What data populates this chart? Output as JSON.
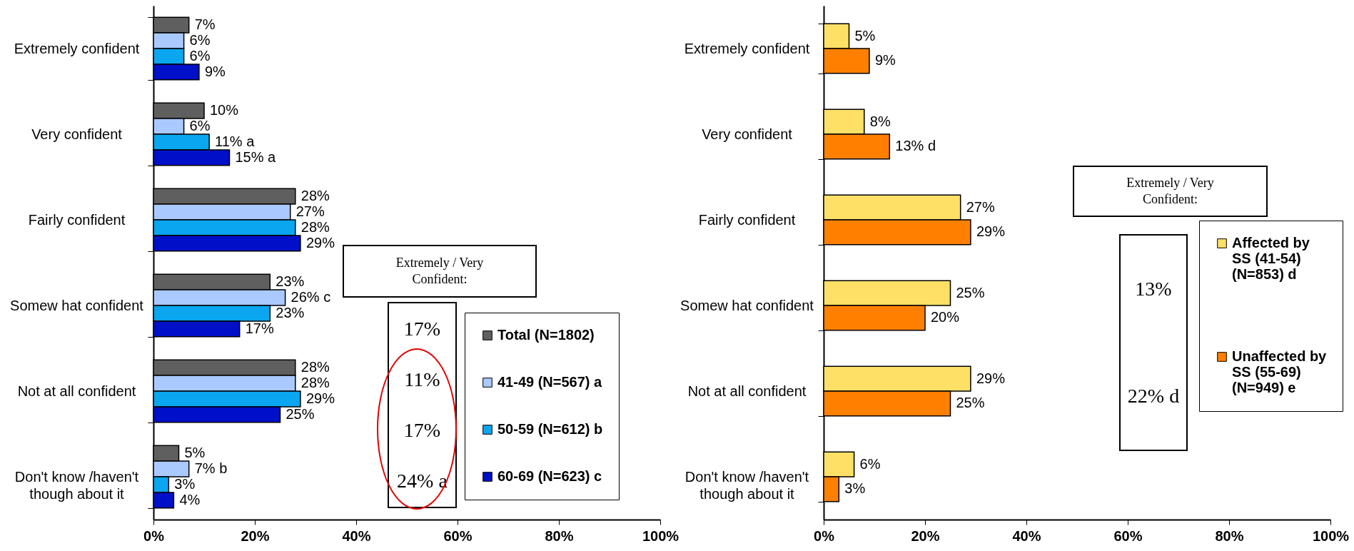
{
  "chart_data": [
    {
      "type": "bar",
      "orientation": "horizontal",
      "categories": [
        "Extremely confident",
        "Very confident",
        "Fairly confident",
        "Somew hat confident",
        "Not at all confident",
        "Don't know /haven't though about it"
      ],
      "series": [
        {
          "name": "Total (N=1802)",
          "color": "#5f5f5f",
          "values": [
            7,
            10,
            28,
            23,
            28,
            5
          ],
          "value_labels": [
            "7%",
            "10%",
            "28%",
            "23%",
            "28%",
            "5%"
          ]
        },
        {
          "name": "41-49 (N=567) a",
          "color": "#a9c9ff",
          "values": [
            6,
            6,
            27,
            26,
            28,
            7
          ],
          "value_labels": [
            "6%",
            "6%",
            "27%",
            "26% c",
            "28%",
            "7% b"
          ]
        },
        {
          "name": "50-59 (N=612) b",
          "color": "#0aa6f0",
          "values": [
            6,
            11,
            28,
            23,
            29,
            3
          ],
          "value_labels": [
            "6%",
            "11% a",
            "28%",
            "23%",
            "29%",
            "3%"
          ]
        },
        {
          "name": "60-69 (N=623) c",
          "color": "#0010c8",
          "values": [
            9,
            15,
            29,
            17,
            25,
            4
          ],
          "value_labels": [
            "9%",
            "15% a",
            "29%",
            "17%",
            "25%",
            "4%"
          ]
        }
      ],
      "xlim": [
        0,
        100
      ],
      "xticks": [
        {
          "value": 0,
          "label": "0%"
        },
        {
          "value": 20,
          "label": "20%"
        },
        {
          "value": 40,
          "label": "40%"
        },
        {
          "value": 60,
          "label": "60%"
        },
        {
          "value": 80,
          "label": "80%"
        },
        {
          "value": 100,
          "label": "100%"
        }
      ],
      "legend": "bottom right",
      "annotations": [
        "Extremely / Very Confident:",
        "17%",
        "11%",
        "17%",
        "24% a"
      ]
    },
    {
      "type": "bar",
      "orientation": "horizontal",
      "categories": [
        "Extremely confident",
        "Very confident",
        "Fairly confident",
        "Somew hat confident",
        "Not at all confident",
        "Don't know /haven't though about it"
      ],
      "series": [
        {
          "name": "Affected by SS (41-54) (N=853) d",
          "color": "#ffe066",
          "values": [
            5,
            8,
            27,
            25,
            29,
            6
          ],
          "value_labels": [
            "5%",
            "8%",
            "27%",
            "25%",
            "29%",
            "6%"
          ]
        },
        {
          "name": "Unaffected by SS (55-69) (N=949) e",
          "color": "#ff8000",
          "values": [
            9,
            13,
            29,
            20,
            25,
            3
          ],
          "value_labels": [
            "9%",
            "13% d",
            "29%",
            "20%",
            "25%",
            "3%"
          ]
        }
      ],
      "xlim": [
        0,
        100
      ],
      "xticks": [
        {
          "value": 0,
          "label": "0%"
        },
        {
          "value": 20,
          "label": "20%"
        },
        {
          "value": 40,
          "label": "40%"
        },
        {
          "value": 60,
          "label": "60%"
        },
        {
          "value": 80,
          "label": "80%"
        },
        {
          "value": 100,
          "label": "100%"
        }
      ],
      "legend": "right",
      "annotations": [
        "Extremely / Very Confident:",
        "13%",
        "22% d"
      ]
    }
  ]
}
